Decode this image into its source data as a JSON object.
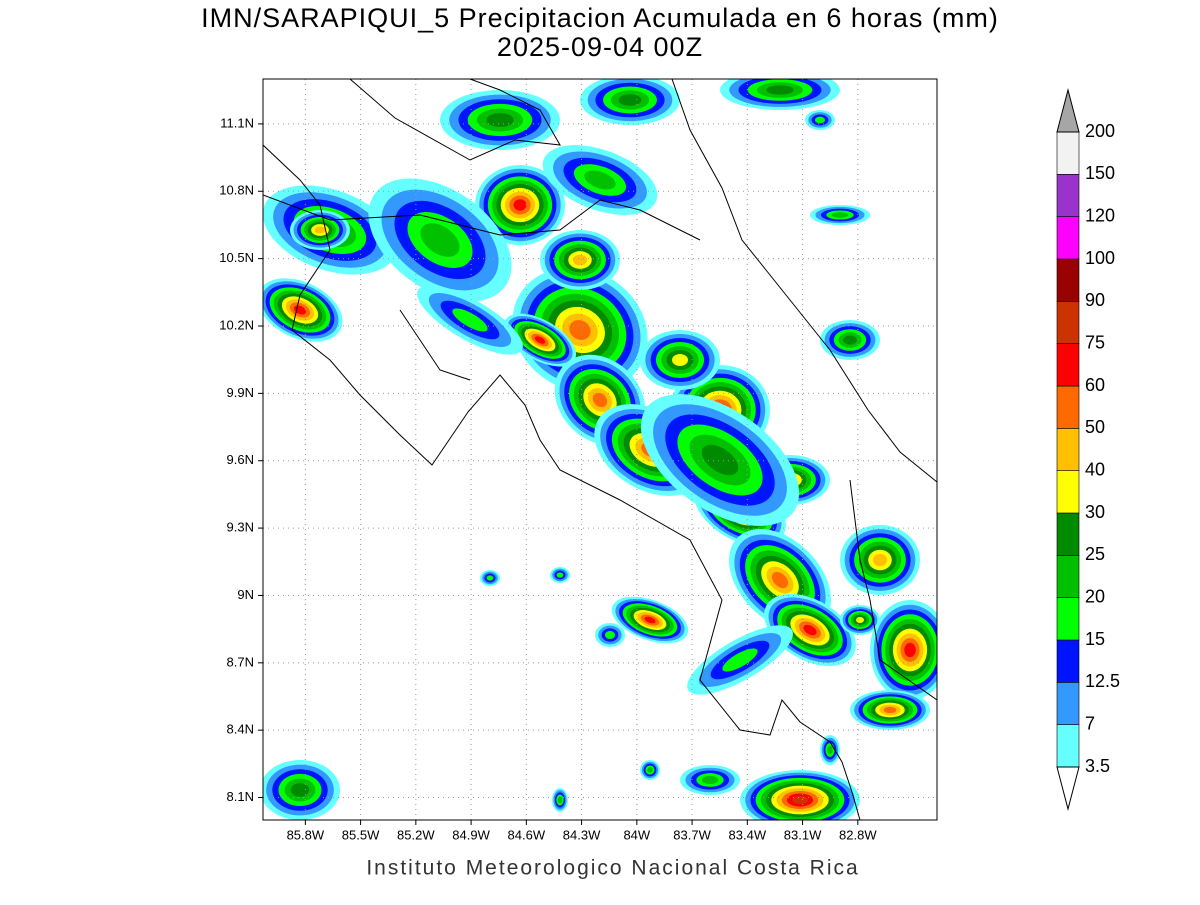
{
  "title": [
    "IMN/SARAPIQUI_5 Precipitacion Acumulada en 6 horas (mm)",
    "2025-09-04 00Z"
  ],
  "map": {
    "lonlim": [
      -86.03,
      -82.37
    ],
    "latlim": [
      8.0,
      11.3
    ],
    "lonticks": [
      {
        "value": -85.8,
        "label": "85.8W"
      },
      {
        "value": -85.5,
        "label": "85.5W"
      },
      {
        "value": -85.2,
        "label": "85.2W"
      },
      {
        "value": -84.9,
        "label": "84.9W"
      },
      {
        "value": -84.6,
        "label": "84.6W"
      },
      {
        "value": -84.3,
        "label": "84.3W"
      },
      {
        "value": -84.0,
        "label": "84W"
      },
      {
        "value": -83.7,
        "label": "83.7W"
      },
      {
        "value": -83.4,
        "label": "83.4W"
      },
      {
        "value": -83.1,
        "label": "83.1W"
      },
      {
        "value": -82.8,
        "label": "82.8W"
      }
    ],
    "latticks": [
      {
        "value": 8.1,
        "label": "8.1N"
      },
      {
        "value": 8.4,
        "label": "8.4N"
      },
      {
        "value": 8.7,
        "label": "8.7N"
      },
      {
        "value": 9.0,
        "label": "9N"
      },
      {
        "value": 9.3,
        "label": "9.3N"
      },
      {
        "value": 9.6,
        "label": "9.6N"
      },
      {
        "value": 9.9,
        "label": "9.9N"
      },
      {
        "value": 10.2,
        "label": "10.2N"
      },
      {
        "value": 10.5,
        "label": "10.5N"
      },
      {
        "value": 10.8,
        "label": "10.8N"
      },
      {
        "value": 11.1,
        "label": "11.1N"
      }
    ],
    "grid": true
  },
  "colorbar": {
    "levels": [
      3.5,
      7,
      12.5,
      15,
      20,
      25,
      30,
      40,
      50,
      60,
      75,
      90,
      100,
      120,
      150,
      200
    ],
    "colors": [
      "#66ffff",
      "#3399ff",
      "#0015ff",
      "#00ff00",
      "#00c000",
      "#008a00",
      "#ffff00",
      "#ffc000",
      "#ff6a00",
      "#ff0000",
      "#cc3300",
      "#990000",
      "#ff00ff",
      "#9933cc",
      "#f2f2f2"
    ],
    "over_color": "#a6a6a6",
    "under_color": "#ffffff"
  },
  "footer": "Instituto Meteorologico Nacional Costa Rica"
}
